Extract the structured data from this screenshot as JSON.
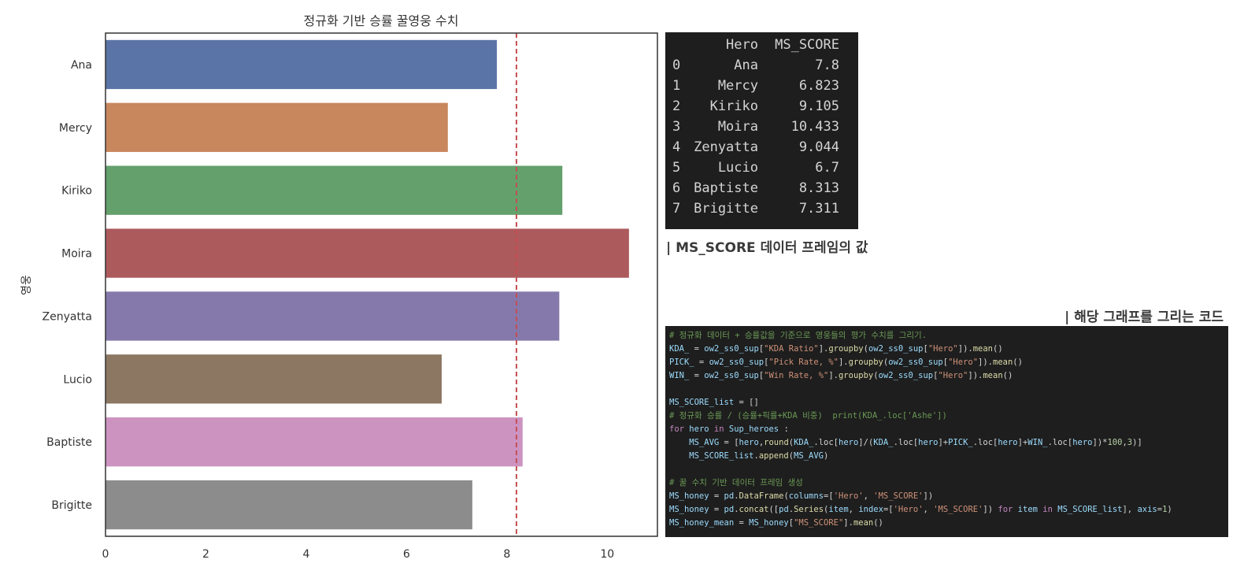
{
  "chart_data": {
    "type": "bar",
    "orientation": "horizontal",
    "title": "정규화 기반 승률 꿀영웅 수치",
    "xlabel": "",
    "ylabel": "영웅",
    "categories": [
      "Ana",
      "Mercy",
      "Kiriko",
      "Moira",
      "Zenyatta",
      "Lucio",
      "Baptiste",
      "Brigitte"
    ],
    "values": [
      7.8,
      6.823,
      9.105,
      10.433,
      9.044,
      6.7,
      8.313,
      7.311
    ],
    "colors": [
      "#5b74a7",
      "#c9875e",
      "#64a06c",
      "#ad5a5d",
      "#8579ab",
      "#8c7762",
      "#cc93c0",
      "#8c8c8c"
    ],
    "xlim": [
      0,
      11
    ],
    "xticks": [
      "0",
      "2",
      "4",
      "6",
      "8",
      "10"
    ],
    "xtick_values": [
      0,
      2,
      4,
      6,
      8,
      10
    ],
    "mean_line": 8.19,
    "mean_line_color": "#c44e52",
    "grid": false
  },
  "dataframe": {
    "columns": [
      "Hero",
      "MS_SCORE"
    ],
    "rows": [
      {
        "index": "0",
        "hero": "Ana",
        "score": "7.8"
      },
      {
        "index": "1",
        "hero": "Mercy",
        "score": "6.823"
      },
      {
        "index": "2",
        "hero": "Kiriko",
        "score": "9.105"
      },
      {
        "index": "3",
        "hero": "Moira",
        "score": "10.433"
      },
      {
        "index": "4",
        "hero": "Zenyatta",
        "score": "9.044"
      },
      {
        "index": "5",
        "hero": "Lucio",
        "score": "6.7"
      },
      {
        "index": "6",
        "hero": "Baptiste",
        "score": "8.313"
      },
      {
        "index": "7",
        "hero": "Brigitte",
        "score": "7.311"
      }
    ]
  },
  "captions": {
    "dataframe": "| MS_SCORE 데이터 프레임의 값",
    "code": "| 해당 그래프를 그리는 코드"
  },
  "code_lines": [
    [
      {
        "c": "com",
        "t": "# 정규화 데이터 + 승률값을 기준으로 영웅들의 평가 수치를 그리기."
      }
    ],
    [
      {
        "c": "var",
        "t": "KDA_"
      },
      {
        "c": "",
        "t": " = "
      },
      {
        "c": "var",
        "t": "ow2_ss0_sup"
      },
      {
        "c": "",
        "t": "["
      },
      {
        "c": "str",
        "t": "\"KDA Ratio\""
      },
      {
        "c": "",
        "t": "]."
      },
      {
        "c": "fn",
        "t": "groupby"
      },
      {
        "c": "",
        "t": "("
      },
      {
        "c": "var",
        "t": "ow2_ss0_sup"
      },
      {
        "c": "",
        "t": "["
      },
      {
        "c": "str",
        "t": "\"Hero\""
      },
      {
        "c": "",
        "t": "])."
      },
      {
        "c": "fn",
        "t": "mean"
      },
      {
        "c": "",
        "t": "()"
      }
    ],
    [
      {
        "c": "var",
        "t": "PICK_"
      },
      {
        "c": "",
        "t": " = "
      },
      {
        "c": "var",
        "t": "ow2_ss0_sup"
      },
      {
        "c": "",
        "t": "["
      },
      {
        "c": "str",
        "t": "\"Pick Rate, %\""
      },
      {
        "c": "",
        "t": "]."
      },
      {
        "c": "fn",
        "t": "groupby"
      },
      {
        "c": "",
        "t": "("
      },
      {
        "c": "var",
        "t": "ow2_ss0_sup"
      },
      {
        "c": "",
        "t": "["
      },
      {
        "c": "str",
        "t": "\"Hero\""
      },
      {
        "c": "",
        "t": "])."
      },
      {
        "c": "fn",
        "t": "mean"
      },
      {
        "c": "",
        "t": "()"
      }
    ],
    [
      {
        "c": "var",
        "t": "WIN_"
      },
      {
        "c": "",
        "t": " = "
      },
      {
        "c": "var",
        "t": "ow2_ss0_sup"
      },
      {
        "c": "",
        "t": "["
      },
      {
        "c": "str",
        "t": "\"Win Rate, %\""
      },
      {
        "c": "",
        "t": "]."
      },
      {
        "c": "fn",
        "t": "groupby"
      },
      {
        "c": "",
        "t": "("
      },
      {
        "c": "var",
        "t": "ow2_ss0_sup"
      },
      {
        "c": "",
        "t": "["
      },
      {
        "c": "str",
        "t": "\"Hero\""
      },
      {
        "c": "",
        "t": "])."
      },
      {
        "c": "fn",
        "t": "mean"
      },
      {
        "c": "",
        "t": "()"
      }
    ],
    [],
    [
      {
        "c": "var",
        "t": "MS_SCORE_list"
      },
      {
        "c": "",
        "t": " = []"
      }
    ],
    [
      {
        "c": "com",
        "t": "# 정규화 승률 / (승률+픽률+KDA 비중)  print(KDA_.loc['Ashe'])"
      }
    ],
    [
      {
        "c": "kw",
        "t": "for"
      },
      {
        "c": "",
        "t": " "
      },
      {
        "c": "var",
        "t": "hero"
      },
      {
        "c": "",
        "t": " "
      },
      {
        "c": "kw",
        "t": "in"
      },
      {
        "c": "",
        "t": " "
      },
      {
        "c": "var",
        "t": "Sup_heroes"
      },
      {
        "c": "",
        "t": " :"
      }
    ],
    [
      {
        "c": "",
        "t": "    "
      },
      {
        "c": "var",
        "t": "MS_AVG"
      },
      {
        "c": "",
        "t": " = ["
      },
      {
        "c": "var",
        "t": "hero"
      },
      {
        "c": "",
        "t": ","
      },
      {
        "c": "fn",
        "t": "round"
      },
      {
        "c": "",
        "t": "("
      },
      {
        "c": "var",
        "t": "KDA_"
      },
      {
        "c": "",
        "t": ".loc["
      },
      {
        "c": "var",
        "t": "hero"
      },
      {
        "c": "",
        "t": "]/("
      },
      {
        "c": "var",
        "t": "KDA_"
      },
      {
        "c": "",
        "t": ".loc["
      },
      {
        "c": "var",
        "t": "hero"
      },
      {
        "c": "",
        "t": "]+"
      },
      {
        "c": "var",
        "t": "PICK_"
      },
      {
        "c": "",
        "t": ".loc["
      },
      {
        "c": "var",
        "t": "hero"
      },
      {
        "c": "",
        "t": "]+"
      },
      {
        "c": "var",
        "t": "WIN_"
      },
      {
        "c": "",
        "t": ".loc["
      },
      {
        "c": "var",
        "t": "hero"
      },
      {
        "c": "",
        "t": "])*"
      },
      {
        "c": "num",
        "t": "100"
      },
      {
        "c": "",
        "t": ","
      },
      {
        "c": "num",
        "t": "3"
      },
      {
        "c": "",
        "t": ")]"
      }
    ],
    [
      {
        "c": "",
        "t": "    "
      },
      {
        "c": "var",
        "t": "MS_SCORE_list"
      },
      {
        "c": "",
        "t": "."
      },
      {
        "c": "fn",
        "t": "append"
      },
      {
        "c": "",
        "t": "("
      },
      {
        "c": "var",
        "t": "MS_AVG"
      },
      {
        "c": "",
        "t": ")"
      }
    ],
    [],
    [
      {
        "c": "com",
        "t": "# 꿀 수치 기반 데이터 프레임 생성"
      }
    ],
    [
      {
        "c": "var",
        "t": "MS_honey"
      },
      {
        "c": "",
        "t": " = "
      },
      {
        "c": "var",
        "t": "pd"
      },
      {
        "c": "",
        "t": "."
      },
      {
        "c": "fn",
        "t": "DataFrame"
      },
      {
        "c": "",
        "t": "("
      },
      {
        "c": "var",
        "t": "columns"
      },
      {
        "c": "",
        "t": "=["
      },
      {
        "c": "str",
        "t": "'Hero'"
      },
      {
        "c": "",
        "t": ", "
      },
      {
        "c": "str",
        "t": "'MS_SCORE'"
      },
      {
        "c": "",
        "t": "])"
      }
    ],
    [
      {
        "c": "var",
        "t": "MS_honey"
      },
      {
        "c": "",
        "t": " = "
      },
      {
        "c": "var",
        "t": "pd"
      },
      {
        "c": "",
        "t": "."
      },
      {
        "c": "fn",
        "t": "concat"
      },
      {
        "c": "",
        "t": "(["
      },
      {
        "c": "var",
        "t": "pd"
      },
      {
        "c": "",
        "t": "."
      },
      {
        "c": "fn",
        "t": "Series"
      },
      {
        "c": "",
        "t": "("
      },
      {
        "c": "var",
        "t": "item"
      },
      {
        "c": "",
        "t": ", "
      },
      {
        "c": "var",
        "t": "index"
      },
      {
        "c": "",
        "t": "=["
      },
      {
        "c": "str",
        "t": "'Hero'"
      },
      {
        "c": "",
        "t": ", "
      },
      {
        "c": "str",
        "t": "'MS_SCORE'"
      },
      {
        "c": "",
        "t": "]) "
      },
      {
        "c": "kw",
        "t": "for"
      },
      {
        "c": "",
        "t": " "
      },
      {
        "c": "var",
        "t": "item"
      },
      {
        "c": "",
        "t": " "
      },
      {
        "c": "kw",
        "t": "in"
      },
      {
        "c": "",
        "t": " "
      },
      {
        "c": "var",
        "t": "MS_SCORE_list"
      },
      {
        "c": "",
        "t": "], "
      },
      {
        "c": "var",
        "t": "axis"
      },
      {
        "c": "",
        "t": "="
      },
      {
        "c": "num",
        "t": "1"
      },
      {
        "c": "",
        "t": ")"
      }
    ],
    [
      {
        "c": "var",
        "t": "MS_honey_mean"
      },
      {
        "c": "",
        "t": " = "
      },
      {
        "c": "var",
        "t": "MS_honey"
      },
      {
        "c": "",
        "t": "["
      },
      {
        "c": "str",
        "t": "\"MS_SCORE\""
      },
      {
        "c": "",
        "t": "]."
      },
      {
        "c": "fn",
        "t": "mean"
      },
      {
        "c": "",
        "t": "()"
      }
    ]
  ]
}
